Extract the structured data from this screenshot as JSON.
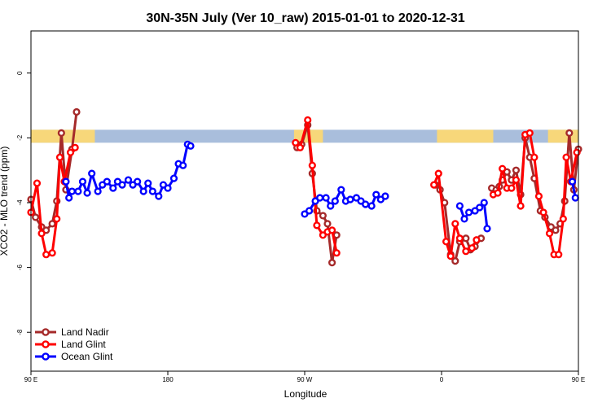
{
  "chart_data": {
    "type": "line",
    "title": "30N-35N July (Ver 10_raw)   2015-01-01 to 2020-12-31",
    "xlabel": "Longitude",
    "ylabel": "XCO2 - MLO trend (ppm)",
    "xlim": [
      90,
      450
    ],
    "ylim": [
      -9.2,
      1.3
    ],
    "x_ticks": [
      {
        "value": 90,
        "label": "90 E"
      },
      {
        "value": 180,
        "label": "180"
      },
      {
        "value": 270,
        "label": "90 W"
      },
      {
        "value": 360,
        "label": "0"
      },
      {
        "value": 450,
        "label": "90 E"
      },
      {
        "value": 540,
        "label": "180"
      }
    ],
    "y_ticks": [
      {
        "value": 0,
        "label": "0"
      },
      {
        "value": -2,
        "label": "-2"
      },
      {
        "value": -4,
        "label": "-4"
      },
      {
        "value": -6,
        "label": "-6"
      },
      {
        "value": -8,
        "label": "-8"
      }
    ],
    "grid": false,
    "legend_position": "bottom-left",
    "band": {
      "y_range": [
        -2.15,
        -1.75
      ],
      "ocean_color": "#a9bedc",
      "land_color": "#f7d77a",
      "land_segments": [
        [
          90,
          132
        ],
        [
          263,
          282
        ],
        [
          357,
          394
        ],
        [
          430,
          492
        ]
      ]
    },
    "series": [
      {
        "name": "Land Nadir",
        "color": "#a52a2a",
        "segments": [
          [
            [
              90,
              -3.9
            ],
            [
              93,
              -4.45
            ],
            [
              97,
              -4.75
            ],
            [
              100,
              -4.85
            ],
            [
              104,
              -4.65
            ],
            [
              107,
              -3.95
            ],
            [
              110,
              -1.85
            ],
            [
              113,
              -3.6
            ],
            [
              117,
              -2.35
            ],
            [
              120,
              -1.2
            ]
          ],
          [
            [
              265,
              -2.3
            ],
            [
              268,
              -2.2
            ],
            [
              272,
              -1.6
            ],
            [
              275,
              -3.1
            ],
            [
              278,
              -4.25
            ],
            [
              282,
              -4.4
            ],
            [
              285,
              -4.65
            ],
            [
              288,
              -5.85
            ],
            [
              291,
              -5.0
            ]
          ],
          [
            [
              356,
              -3.45
            ],
            [
              359,
              -3.6
            ],
            [
              362,
              -4.0
            ],
            [
              366,
              -5.6
            ],
            [
              369,
              -5.8
            ],
            [
              372,
              -5.2
            ],
            [
              376,
              -5.1
            ],
            [
              379,
              -5.45
            ],
            [
              382,
              -5.35
            ],
            [
              386,
              -5.1
            ]
          ],
          [
            [
              393,
              -3.55
            ],
            [
              396,
              -3.6
            ],
            [
              398,
              -3.5
            ],
            [
              400,
              -3.3
            ],
            [
              403,
              -3.05
            ],
            [
              406,
              -3.3
            ],
            [
              409,
              -3.0
            ],
            [
              412,
              -3.75
            ],
            [
              415,
              -2.0
            ],
            [
              418,
              -2.6
            ],
            [
              421,
              -3.25
            ],
            [
              425,
              -4.25
            ],
            [
              428,
              -4.45
            ],
            [
              432,
              -4.75
            ],
            [
              435,
              -4.85
            ],
            [
              438,
              -4.65
            ],
            [
              441,
              -3.95
            ],
            [
              444,
              -1.85
            ],
            [
              447,
              -3.6
            ],
            [
              450,
              -2.35
            ],
            [
              453,
              -1.2
            ]
          ]
        ]
      },
      {
        "name": "Land Glint",
        "color": "#ff0000",
        "segments": [
          [
            [
              90,
              -4.3
            ],
            [
              94,
              -3.4
            ],
            [
              97,
              -4.95
            ],
            [
              100,
              -5.6
            ],
            [
              104,
              -5.55
            ],
            [
              107,
              -4.5
            ],
            [
              109,
              -2.6
            ],
            [
              112,
              -3.35
            ],
            [
              116,
              -2.45
            ],
            [
              119,
              -2.3
            ]
          ],
          [
            [
              264,
              -2.15
            ],
            [
              267,
              -2.3
            ],
            [
              272,
              -1.45
            ],
            [
              275,
              -2.85
            ],
            [
              278,
              -4.7
            ],
            [
              282,
              -5.0
            ],
            [
              285,
              -4.9
            ],
            [
              288,
              -4.85
            ],
            [
              291,
              -5.55
            ]
          ],
          [
            [
              355,
              -3.45
            ],
            [
              358,
              -3.1
            ],
            [
              363,
              -5.2
            ],
            [
              366,
              -5.65
            ],
            [
              369,
              -4.65
            ],
            [
              372,
              -5.1
            ],
            [
              376,
              -5.5
            ],
            [
              380,
              -5.4
            ],
            [
              383,
              -5.15
            ]
          ],
          [
            [
              394,
              -3.75
            ],
            [
              397,
              -3.7
            ],
            [
              400,
              -2.95
            ],
            [
              403,
              -3.55
            ],
            [
              406,
              -3.55
            ],
            [
              409,
              -3.3
            ],
            [
              412,
              -4.1
            ],
            [
              415,
              -1.9
            ],
            [
              418,
              -1.85
            ],
            [
              421,
              -2.6
            ],
            [
              424,
              -3.8
            ],
            [
              427,
              -4.3
            ],
            [
              431,
              -4.95
            ],
            [
              434,
              -5.6
            ],
            [
              437,
              -5.6
            ],
            [
              440,
              -4.5
            ],
            [
              442,
              -2.6
            ],
            [
              445,
              -3.35
            ],
            [
              449,
              -2.45
            ],
            [
              452,
              -2.3
            ]
          ]
        ]
      },
      {
        "name": "Ocean Glint",
        "color": "#0000ff",
        "segments": [
          [
            [
              113,
              -3.35
            ],
            [
              115,
              -3.85
            ],
            [
              117,
              -3.65
            ],
            [
              121,
              -3.65
            ],
            [
              124,
              -3.35
            ],
            [
              127,
              -3.7
            ],
            [
              130,
              -3.1
            ],
            [
              134,
              -3.65
            ],
            [
              137,
              -3.45
            ],
            [
              140,
              -3.35
            ],
            [
              144,
              -3.55
            ],
            [
              147,
              -3.35
            ],
            [
              150,
              -3.45
            ],
            [
              154,
              -3.3
            ],
            [
              157,
              -3.45
            ],
            [
              160,
              -3.35
            ],
            [
              164,
              -3.65
            ],
            [
              167,
              -3.4
            ],
            [
              170,
              -3.65
            ],
            [
              174,
              -3.8
            ],
            [
              177,
              -3.45
            ],
            [
              180,
              -3.55
            ],
            [
              184,
              -3.25
            ],
            [
              187,
              -2.8
            ],
            [
              190,
              -2.85
            ],
            [
              193,
              -2.2
            ],
            [
              195,
              -2.25
            ]
          ],
          [
            [
              270,
              -4.35
            ],
            [
              273,
              -4.25
            ],
            [
              277,
              -3.95
            ],
            [
              280,
              -3.85
            ],
            [
              284,
              -3.85
            ],
            [
              287,
              -4.1
            ],
            [
              290,
              -3.95
            ],
            [
              294,
              -3.6
            ],
            [
              297,
              -3.95
            ],
            [
              300,
              -3.9
            ],
            [
              304,
              -3.85
            ],
            [
              307,
              -3.95
            ],
            [
              310,
              -4.05
            ],
            [
              314,
              -4.1
            ],
            [
              317,
              -3.75
            ],
            [
              320,
              -3.9
            ],
            [
              323,
              -3.8
            ]
          ],
          [
            [
              372,
              -4.1
            ],
            [
              375,
              -4.5
            ],
            [
              378,
              -4.3
            ],
            [
              382,
              -4.25
            ],
            [
              385,
              -4.15
            ],
            [
              388,
              -4.0
            ],
            [
              390,
              -4.8
            ]
          ],
          [
            [
              446,
              -3.35
            ],
            [
              448,
              -3.85
            ],
            [
              451,
              -3.65
            ],
            [
              455,
              -3.65
            ],
            [
              458,
              -3.35
            ],
            [
              461,
              -3.7
            ],
            [
              464,
              -3.1
            ],
            [
              467,
              -3.65
            ],
            [
              470,
              -3.45
            ],
            [
              473,
              -3.35
            ],
            [
              477,
              -3.55
            ],
            [
              480,
              -3.35
            ],
            [
              483,
              -3.45
            ],
            [
              486,
              -3.3
            ],
            [
              489,
              -3.45
            ]
          ]
        ]
      }
    ]
  }
}
